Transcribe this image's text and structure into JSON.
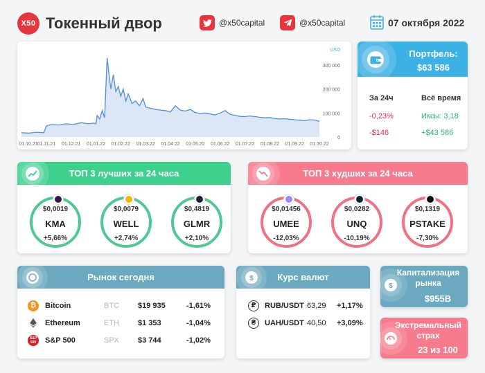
{
  "header": {
    "logo_text": "X50",
    "title": "Токенный двор",
    "twitter": "@x50capital",
    "telegram": "@x50capital",
    "date": "07 октября 2022"
  },
  "chart_data": {
    "type": "area",
    "unit": "USD",
    "x_ticks": [
      "01.10.21",
      "01.11.21",
      "01.12.21",
      "01.01.22",
      "01.02.22",
      "01.03.22",
      "01.04.22",
      "01.05.22",
      "01.06.22",
      "01.07.22",
      "01.08.22",
      "01.09.22",
      "01.10.22"
    ],
    "y_ticks": [
      0,
      100000,
      200000,
      300000
    ],
    "y_tick_labels": [
      "0",
      "100 000",
      "200 000",
      "300 000"
    ],
    "ylim": [
      0,
      340000
    ],
    "color": "#4e8fd9",
    "fill": "#dbe7f6",
    "x": [
      0,
      0.3,
      0.6,
      0.9,
      1.0,
      1.05,
      1.2,
      1.5,
      1.8,
      2.1,
      2.4,
      2.7,
      2.9,
      3.0,
      3.05,
      3.15,
      3.25,
      3.35,
      3.45,
      3.55,
      3.6,
      3.7,
      3.8,
      3.9,
      4.0,
      4.1,
      4.2,
      4.3,
      4.45,
      4.6,
      4.75,
      4.9,
      5.0,
      5.2,
      5.4,
      5.6,
      5.8,
      6.0,
      6.2,
      6.4,
      6.6,
      6.8,
      7.0,
      7.2,
      7.4,
      7.6,
      7.8,
      8.0,
      8.2,
      8.4,
      8.6,
      8.8,
      9.0,
      9.2,
      9.4,
      9.6,
      9.8,
      10.0,
      10.2,
      10.4,
      10.6,
      10.8,
      11.0,
      11.2,
      11.4,
      11.6,
      11.8,
      12.0
    ],
    "y": [
      18000,
      16000,
      20000,
      18000,
      45000,
      48000,
      52000,
      50000,
      55000,
      52000,
      60000,
      55000,
      58000,
      55000,
      90000,
      75000,
      110000,
      80000,
      330000,
      240000,
      200000,
      260000,
      190000,
      210000,
      170000,
      200000,
      150000,
      180000,
      140000,
      150000,
      130000,
      160000,
      125000,
      120000,
      115000,
      112000,
      110000,
      105000,
      130000,
      112000,
      108000,
      115000,
      102000,
      98000,
      100000,
      96000,
      92000,
      100000,
      110000,
      95000,
      90000,
      86000,
      85000,
      88000,
      85000,
      82000,
      80000,
      81000,
      77000,
      75000,
      76000,
      74000,
      72000,
      70000,
      68000,
      72000,
      71000,
      65000
    ]
  },
  "portfolio": {
    "title": "Портфель:",
    "value": "$63 586",
    "col1_head": "За 24ч",
    "col2_head": "Всё время",
    "pct_24h": "-0,23%",
    "pct_all": "Иксы: 3,18",
    "usd_24h": "-$146",
    "usd_all": "+$43 586"
  },
  "top_best": {
    "title": "ТОП 3 лучших за 24 часа",
    "color": "#3ed18d",
    "ring": "#4fc893",
    "coins": [
      {
        "price": "$0,0019",
        "name": "KMA",
        "change": "+5,66%",
        "badge": "#2e1a45"
      },
      {
        "price": "$0,0079",
        "name": "WELL",
        "change": "+2,74%",
        "badge": "#f2b705"
      },
      {
        "price": "$0,4819",
        "name": "GLMR",
        "change": "+2,10%",
        "badge": "#1d1f3a"
      }
    ]
  },
  "top_worst": {
    "title": "ТОП 3 худших за 24 часа",
    "color": "#f77a8d",
    "ring": "#ef7184",
    "coins": [
      {
        "price": "$0,01456",
        "name": "UMEE",
        "change": "-12,03%",
        "badge": "#9b8cf2"
      },
      {
        "price": "$0,0282",
        "name": "UNQ",
        "change": "-10,19%",
        "badge": "#0b2230"
      },
      {
        "price": "$0,1319",
        "name": "PSTAKE",
        "change": "-7,30%",
        "badge": "#111111"
      }
    ]
  },
  "market": {
    "title": "Рынок сегодня",
    "rows": [
      {
        "name": "Bitcoin",
        "ticker": "BTC",
        "price": "$19 935",
        "change": "-1,61%",
        "icon": "bitcoin-icon"
      },
      {
        "name": "Ethereum",
        "ticker": "ETH",
        "price": "$1 353",
        "change": "-1,04%",
        "icon": "ethereum-icon"
      },
      {
        "name": "S&P 500",
        "ticker": "SPX",
        "price": "$3 744",
        "change": "-1,02%",
        "icon": "sp500-icon",
        "icon_text": "S&P\n500"
      }
    ]
  },
  "currency": {
    "title": "Курс валют",
    "rows": [
      {
        "pair": "RUB/USDT",
        "rate": "63,29",
        "change": "+1,17%",
        "symbol": "₽"
      },
      {
        "pair": "UAH/USDT",
        "rate": "40,50",
        "change": "+3,09%",
        "symbol": "₴"
      }
    ]
  },
  "market_cap": {
    "title_line1": "Капитализация",
    "title_line2": "рынка",
    "value": "$955B",
    "color": "#6aa9bf"
  },
  "fear": {
    "title_line1": "Экстремальный",
    "title_line2": "страх",
    "value": "23 из 100",
    "color": "#f77a8d"
  }
}
